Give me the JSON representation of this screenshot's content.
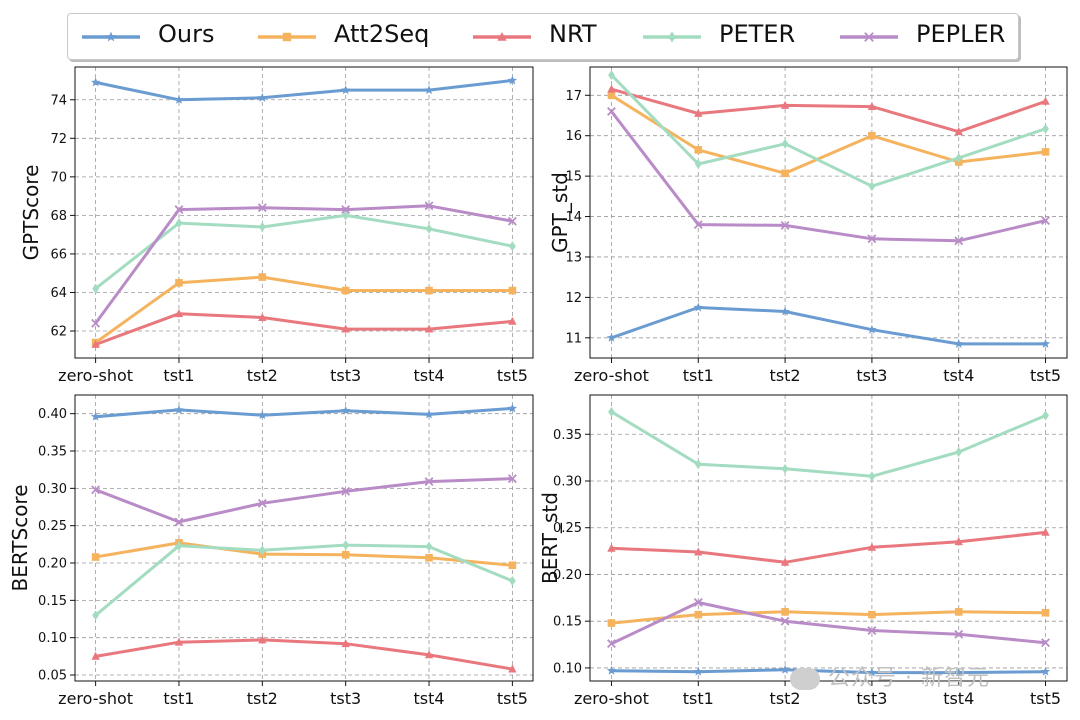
{
  "legend": [
    {
      "name": "Ours",
      "color": "#6a9bd1",
      "marker": "star"
    },
    {
      "name": "Att2Seq",
      "color": "#f5b35e",
      "marker": "square"
    },
    {
      "name": "NRT",
      "color": "#e8787e",
      "marker": "triangle"
    },
    {
      "name": "PETER",
      "color": "#a3dcc0",
      "marker": "diamond"
    },
    {
      "name": "PEPLER",
      "color": "#b98cc8",
      "marker": "x"
    }
  ],
  "watermark": {
    "text": "公众号 · 新智元"
  },
  "chart_data": [
    {
      "type": "line",
      "ylabel": "GPTScore",
      "categories": [
        "zero-shot",
        "tst1",
        "tst2",
        "tst3",
        "tst4",
        "tst5"
      ],
      "ylim": [
        60.6,
        75.7
      ],
      "yticks": [
        62,
        64,
        66,
        68,
        70,
        72,
        74
      ],
      "grid": true,
      "series": [
        {
          "name": "Ours",
          "values": [
            74.9,
            74.0,
            74.1,
            74.5,
            74.5,
            75.0
          ]
        },
        {
          "name": "Att2Seq",
          "values": [
            61.4,
            64.5,
            64.8,
            64.1,
            64.1,
            64.1
          ]
        },
        {
          "name": "NRT",
          "values": [
            61.3,
            62.9,
            62.7,
            62.1,
            62.1,
            62.5
          ]
        },
        {
          "name": "PETER",
          "values": [
            64.2,
            67.6,
            67.4,
            68.0,
            67.3,
            66.4
          ]
        },
        {
          "name": "PEPLER",
          "values": [
            62.4,
            68.3,
            68.4,
            68.3,
            68.5,
            67.7
          ]
        }
      ]
    },
    {
      "type": "line",
      "ylabel": "GPT_std",
      "categories": [
        "zero-shot",
        "tst1",
        "tst2",
        "tst3",
        "tst4",
        "tst5"
      ],
      "ylim": [
        10.5,
        17.7
      ],
      "yticks": [
        11,
        12,
        13,
        14,
        15,
        16,
        17
      ],
      "grid": true,
      "series": [
        {
          "name": "Ours",
          "values": [
            11.0,
            11.75,
            11.65,
            11.2,
            10.85,
            10.85
          ]
        },
        {
          "name": "Att2Seq",
          "values": [
            17.0,
            15.65,
            15.07,
            16.0,
            15.35,
            15.6
          ]
        },
        {
          "name": "NRT",
          "values": [
            17.15,
            16.55,
            16.75,
            16.72,
            16.1,
            16.85
          ]
        },
        {
          "name": "PETER",
          "values": [
            17.5,
            15.3,
            15.8,
            14.75,
            15.45,
            16.17
          ]
        },
        {
          "name": "PEPLER",
          "values": [
            16.6,
            13.8,
            13.78,
            13.45,
            13.4,
            13.9
          ]
        }
      ]
    },
    {
      "type": "line",
      "ylabel": "BERTScore",
      "categories": [
        "zero-shot",
        "tst1",
        "tst2",
        "tst3",
        "tst4",
        "tst5"
      ],
      "ylim": [
        0.042,
        0.425
      ],
      "yticks": [
        0.05,
        0.1,
        0.15,
        0.2,
        0.25,
        0.3,
        0.35,
        0.4
      ],
      "grid": true,
      "series": [
        {
          "name": "Ours",
          "values": [
            0.396,
            0.405,
            0.398,
            0.404,
            0.399,
            0.407
          ]
        },
        {
          "name": "Att2Seq",
          "values": [
            0.208,
            0.227,
            0.212,
            0.211,
            0.207,
            0.197
          ]
        },
        {
          "name": "NRT",
          "values": [
            0.075,
            0.094,
            0.097,
            0.092,
            0.077,
            0.058
          ]
        },
        {
          "name": "PETER",
          "values": [
            0.13,
            0.223,
            0.217,
            0.224,
            0.222,
            0.176
          ]
        },
        {
          "name": "PEPLER",
          "values": [
            0.298,
            0.255,
            0.28,
            0.296,
            0.309,
            0.313
          ]
        }
      ]
    },
    {
      "type": "line",
      "ylabel": "BERT_std",
      "categories": [
        "zero-shot",
        "tst1",
        "tst2",
        "tst3",
        "tst4",
        "tst5"
      ],
      "ylim": [
        0.086,
        0.392
      ],
      "yticks": [
        0.1,
        0.15,
        0.2,
        0.25,
        0.3,
        0.35
      ],
      "grid": true,
      "series": [
        {
          "name": "Ours",
          "values": [
            0.097,
            0.096,
            0.098,
            0.095,
            0.095,
            0.096
          ]
        },
        {
          "name": "Att2Seq",
          "values": [
            0.148,
            0.157,
            0.16,
            0.157,
            0.16,
            0.159
          ]
        },
        {
          "name": "NRT",
          "values": [
            0.228,
            0.224,
            0.213,
            0.229,
            0.235,
            0.245
          ]
        },
        {
          "name": "PETER",
          "values": [
            0.374,
            0.318,
            0.313,
            0.305,
            0.331,
            0.37
          ]
        },
        {
          "name": "PEPLER",
          "values": [
            0.126,
            0.17,
            0.15,
            0.14,
            0.136,
            0.127
          ]
        }
      ]
    }
  ]
}
